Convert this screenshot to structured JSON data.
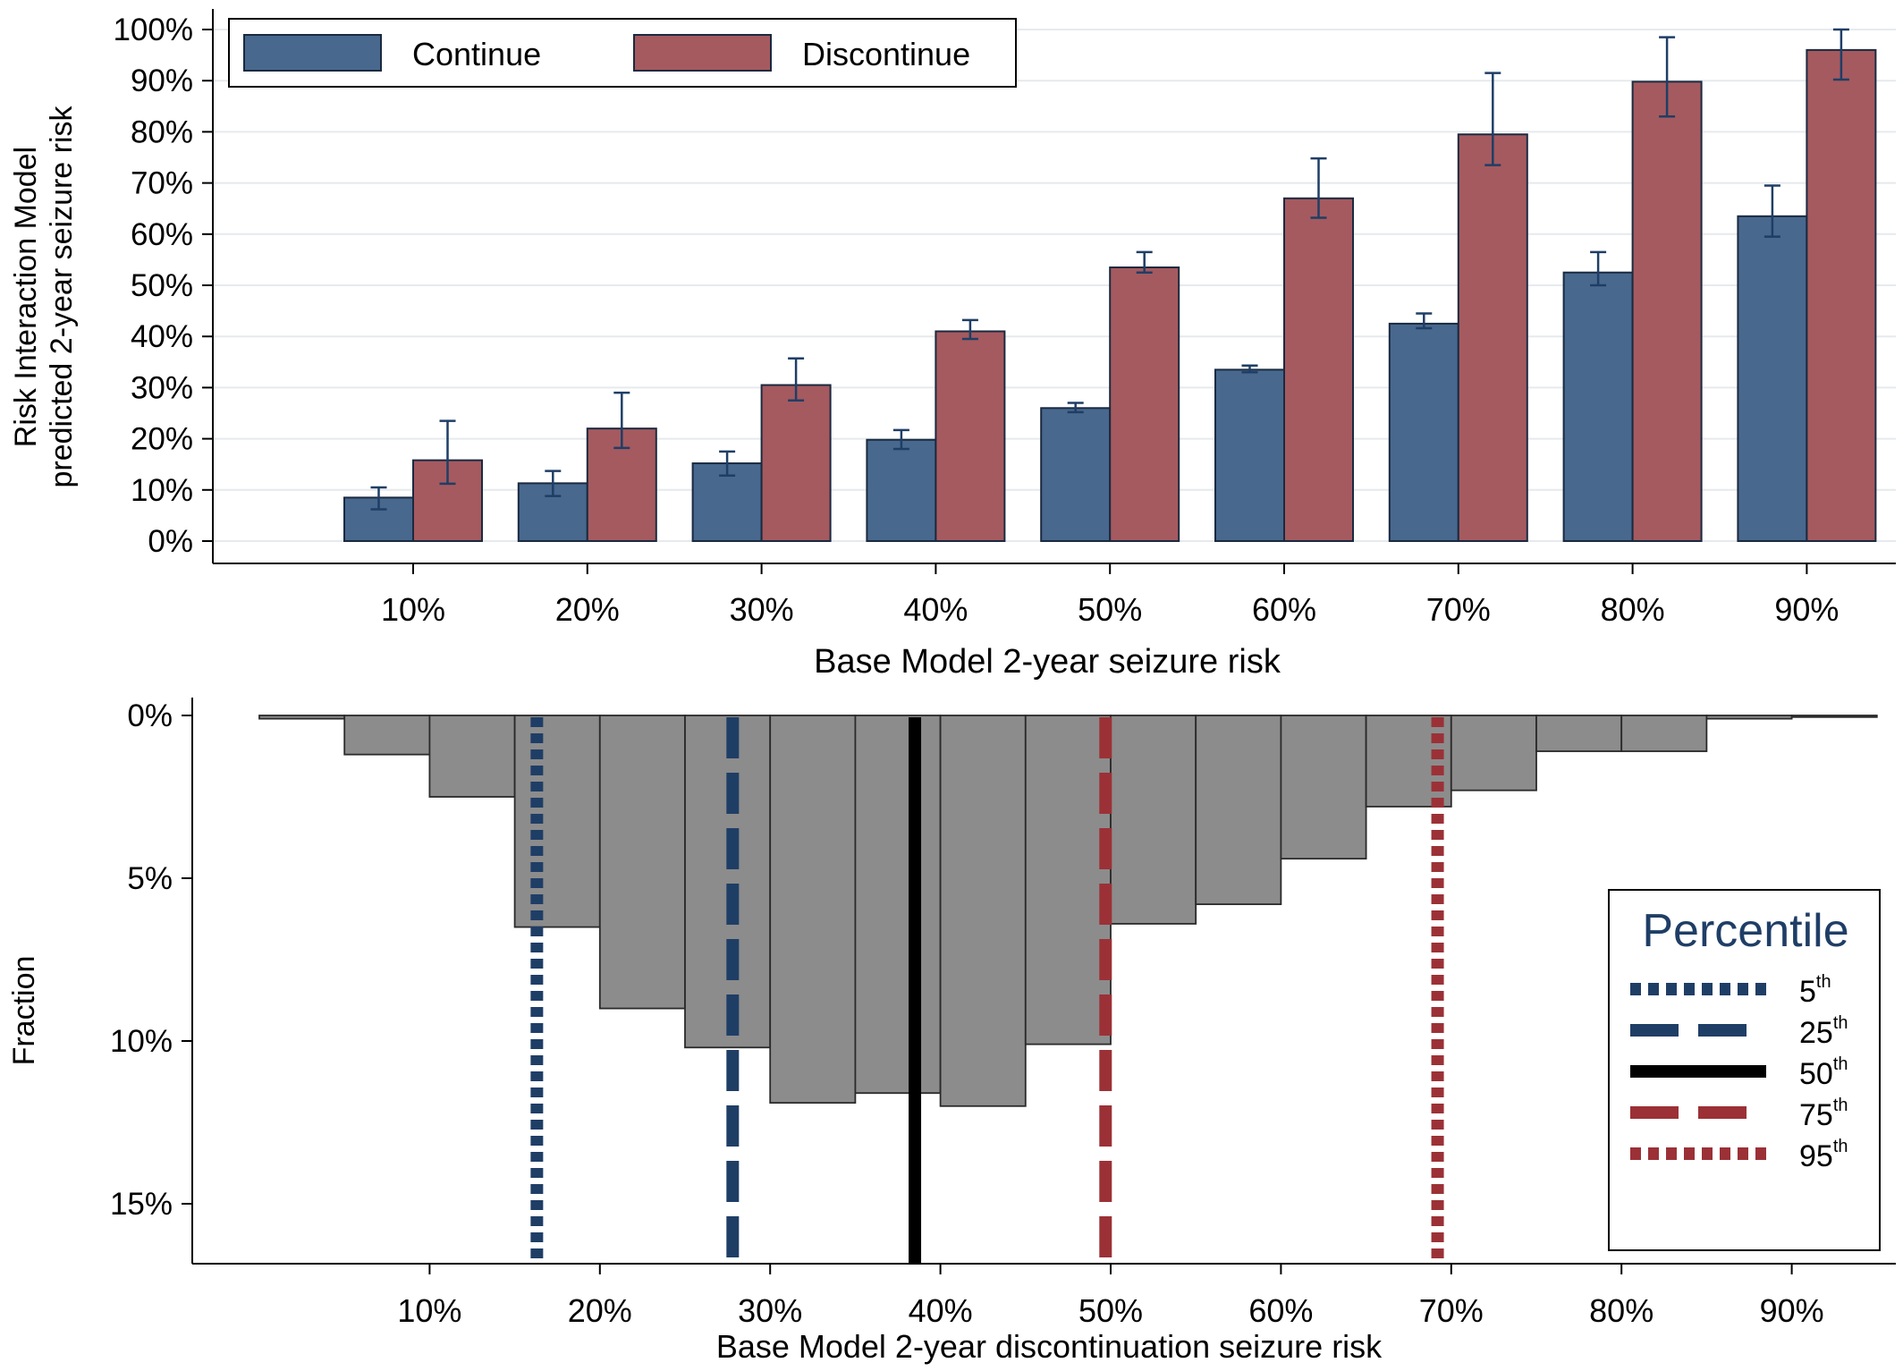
{
  "chart_data": [
    {
      "type": "bar",
      "xlabel": "Base Model 2-year seizure risk",
      "ylabel_lines": [
        "Risk Interaction Model",
        "predicted 2-year seizure risk"
      ],
      "categories": [
        "10%",
        "20%",
        "30%",
        "40%",
        "50%",
        "60%",
        "70%",
        "80%",
        "90%"
      ],
      "y_ticks": [
        "0%",
        "10%",
        "20%",
        "30%",
        "40%",
        "50%",
        "60%",
        "70%",
        "80%",
        "90%",
        "100%"
      ],
      "ylim": [
        0,
        100
      ],
      "grid": true,
      "legend_position": "top-left",
      "series": [
        {
          "name": "Continue",
          "color": "#48688e",
          "values": [
            8.5,
            11.3,
            15.2,
            19.8,
            26.0,
            33.5,
            42.5,
            52.5,
            63.5
          ],
          "ci_lower": [
            6.2,
            8.8,
            12.8,
            18.0,
            25.2,
            33.0,
            41.6,
            50.0,
            59.5
          ],
          "ci_upper": [
            10.5,
            13.7,
            17.5,
            21.7,
            27.0,
            34.3,
            44.5,
            56.5,
            69.5
          ]
        },
        {
          "name": "Discontinue",
          "color": "#a55a5f",
          "values": [
            15.8,
            22.0,
            30.5,
            41.0,
            53.5,
            67.0,
            79.5,
            89.8,
            96.0
          ],
          "ci_lower": [
            11.2,
            18.2,
            27.5,
            39.5,
            52.5,
            63.2,
            73.5,
            83.0,
            90.2
          ],
          "ci_upper": [
            23.5,
            29.0,
            35.7,
            43.2,
            56.5,
            74.8,
            91.5,
            98.5,
            100.0
          ]
        }
      ]
    },
    {
      "type": "histogram",
      "xlabel": "Base Model 2-year discontinuation seizure risk",
      "ylabel": "Fraction",
      "orientation": "downward",
      "x_ticks": [
        "10%",
        "20%",
        "30%",
        "40%",
        "50%",
        "60%",
        "70%",
        "80%",
        "90%"
      ],
      "y_ticks": [
        "0%",
        "5%",
        "10%",
        "15%"
      ],
      "bar_color": "#8c8c8c",
      "bins": [
        {
          "x0": 0,
          "x1": 5,
          "fraction": 0.1
        },
        {
          "x0": 5,
          "x1": 10,
          "fraction": 1.2
        },
        {
          "x0": 10,
          "x1": 15,
          "fraction": 2.5
        },
        {
          "x0": 15,
          "x1": 20,
          "fraction": 6.5
        },
        {
          "x0": 20,
          "x1": 25,
          "fraction": 9.0
        },
        {
          "x0": 25,
          "x1": 30,
          "fraction": 10.2
        },
        {
          "x0": 30,
          "x1": 35,
          "fraction": 11.9
        },
        {
          "x0": 35,
          "x1": 40,
          "fraction": 11.6
        },
        {
          "x0": 40,
          "x1": 45,
          "fraction": 12.0
        },
        {
          "x0": 45,
          "x1": 50,
          "fraction": 10.1
        },
        {
          "x0": 50,
          "x1": 55,
          "fraction": 6.4
        },
        {
          "x0": 55,
          "x1": 60,
          "fraction": 5.8
        },
        {
          "x0": 60,
          "x1": 65,
          "fraction": 4.4
        },
        {
          "x0": 65,
          "x1": 70,
          "fraction": 2.8
        },
        {
          "x0": 70,
          "x1": 75,
          "fraction": 2.3
        },
        {
          "x0": 75,
          "x1": 80,
          "fraction": 1.1
        },
        {
          "x0": 80,
          "x1": 85,
          "fraction": 1.1
        },
        {
          "x0": 85,
          "x1": 90,
          "fraction": 0.1
        },
        {
          "x0": 90,
          "x1": 95,
          "fraction": 0.05
        }
      ],
      "percentile_legend_title": "Percentile",
      "percentiles": [
        {
          "label": "5",
          "sup": "th",
          "value": 16.3,
          "color": "#1f3e66",
          "style": "dotted"
        },
        {
          "label": "25",
          "sup": "th",
          "value": 27.8,
          "color": "#1f3e66",
          "style": "dashed"
        },
        {
          "label": "50",
          "sup": "th",
          "value": 38.5,
          "color": "#000000",
          "style": "solid"
        },
        {
          "label": "75",
          "sup": "th",
          "value": 49.7,
          "color": "#9b3136",
          "style": "dashed"
        },
        {
          "label": "95",
          "sup": "th",
          "value": 69.2,
          "color": "#9b3136",
          "style": "dotted"
        }
      ]
    }
  ]
}
